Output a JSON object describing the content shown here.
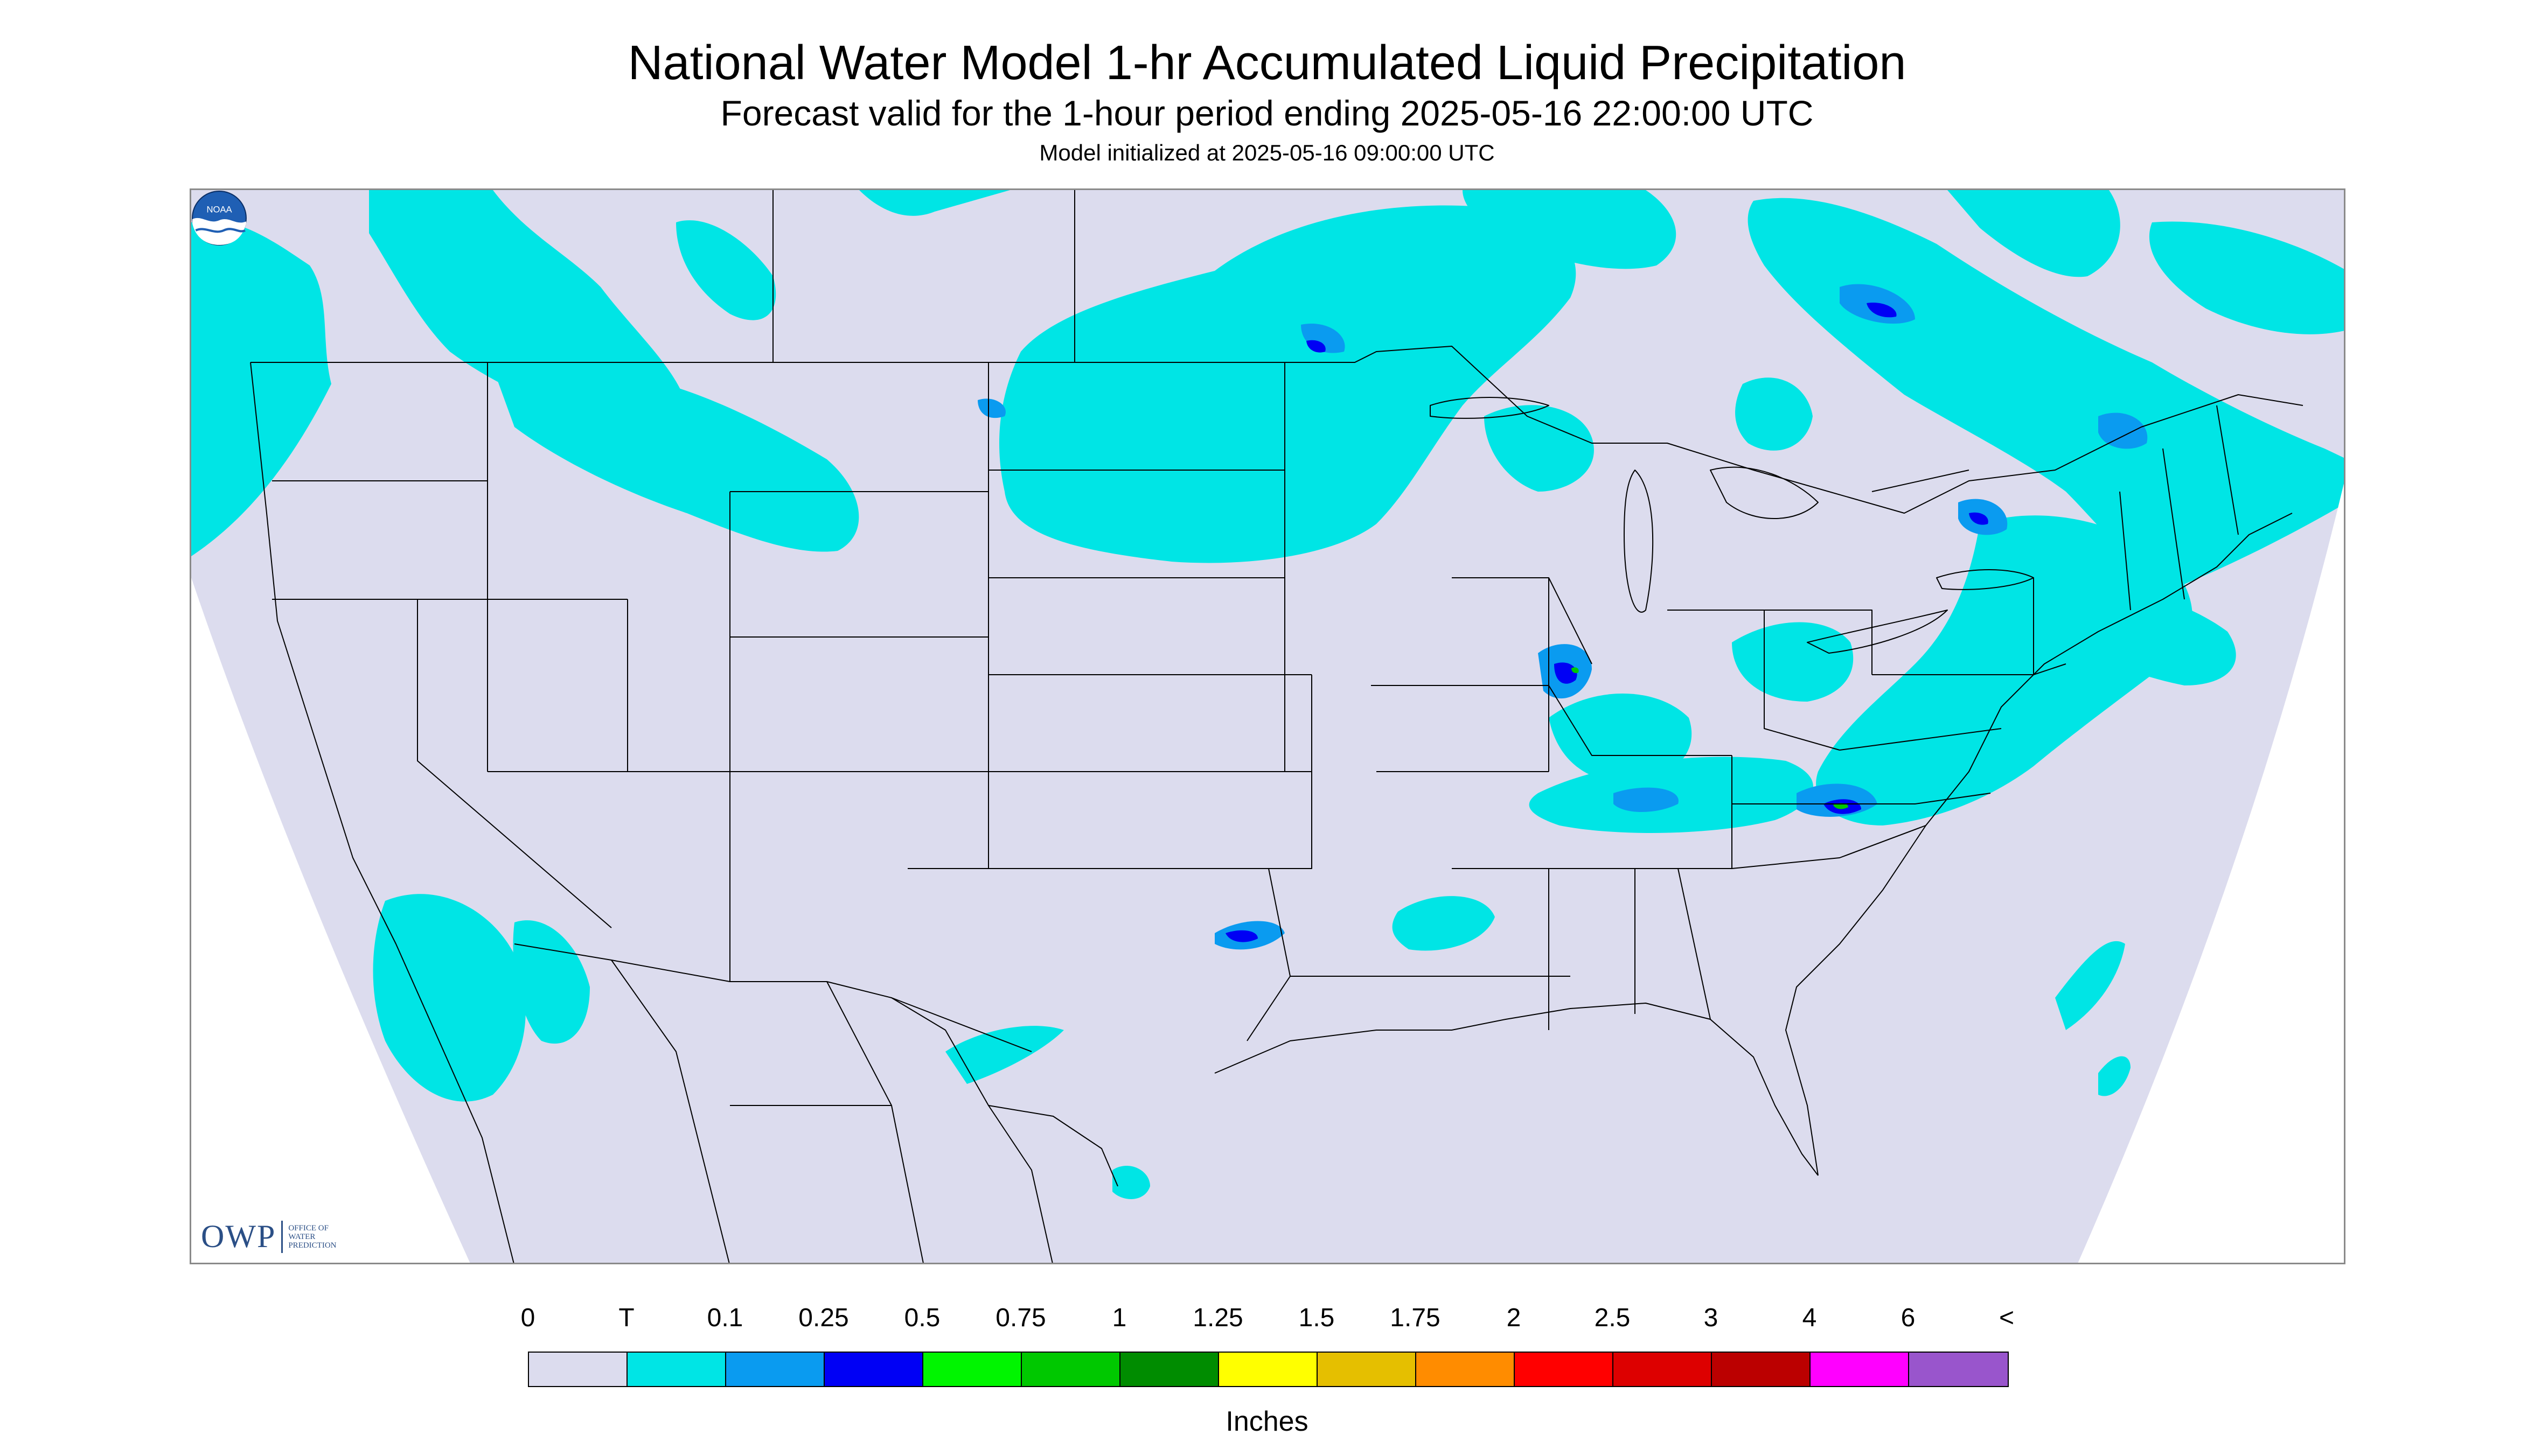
{
  "title": "National Water Model 1-hr Accumulated Liquid Precipitation",
  "subtitle": "Forecast valid for the 1-hour period ending 2025-05-16 22:00:00 UTC",
  "init_text": "Model initialized at 2025-05-16 09:00:00 UTC",
  "logos": {
    "owp_text": "OWP",
    "owp_small": "OFFICE OF WATER PREDICTION",
    "noaa_text": "NOAA"
  },
  "legend": {
    "labels": [
      "0",
      "T",
      "0.1",
      "0.25",
      "0.5",
      "0.75",
      "1",
      "1.25",
      "1.5",
      "1.75",
      "2",
      "2.5",
      "3",
      "4",
      "6",
      "<"
    ],
    "colors": [
      "#dcdcee",
      "#00e5e5",
      "#0a9bf0",
      "#0000f5",
      "#00f500",
      "#00c800",
      "#008c00",
      "#ffff00",
      "#e5bf00",
      "#ff8c00",
      "#ff0000",
      "#dd0000",
      "#bb0000",
      "#ff00ff",
      "#9955cc"
    ],
    "units": "Inches"
  },
  "map_colors": {
    "land": "#dcdcee",
    "outside": "#ffffff",
    "trace": "#00e5e5",
    "light": "#0a9bf0",
    "moderate": "#0000f5",
    "heavy": "#00c800",
    "border": "#000000"
  }
}
